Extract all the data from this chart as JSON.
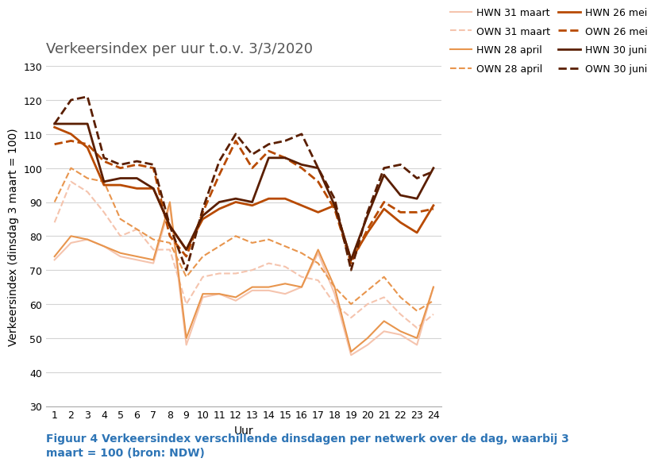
{
  "title": "Verkeersindex per uur t.o.v. 3/3/2020",
  "xlabel": "Uur",
  "ylabel": "Verkeersindex (dinsdag 3 maart = 100)",
  "caption": "Figuur 4 Verkeersindex verschillende dinsdagen per netwerk over de dag, waarbij 3\nmaart = 100 (bron: NDW)",
  "x": [
    1,
    2,
    3,
    4,
    5,
    6,
    7,
    8,
    9,
    10,
    11,
    12,
    13,
    14,
    15,
    16,
    17,
    18,
    19,
    20,
    21,
    22,
    23,
    24
  ],
  "ylim": [
    30,
    130
  ],
  "yticks": [
    30,
    40,
    50,
    60,
    70,
    80,
    90,
    100,
    110,
    120,
    130
  ],
  "series": {
    "HWN_31maart": {
      "label": "HWN 31 maart",
      "color": "#f5c4ae",
      "linestyle": "solid",
      "linewidth": 1.5,
      "values": [
        73,
        78,
        79,
        77,
        74,
        73,
        72,
        89,
        48,
        62,
        63,
        61,
        64,
        64,
        63,
        65,
        75,
        63,
        45,
        48,
        52,
        51,
        48,
        65
      ]
    },
    "OWN_31maart": {
      "label": "OWN 31 maart",
      "color": "#f5c4ae",
      "linestyle": "dashed",
      "linewidth": 1.5,
      "values": [
        84,
        96,
        93,
        87,
        80,
        82,
        76,
        76,
        60,
        68,
        69,
        69,
        70,
        72,
        71,
        68,
        67,
        60,
        56,
        60,
        62,
        57,
        53,
        57
      ]
    },
    "HWN_28april": {
      "label": "HWN 28 april",
      "color": "#e8954d",
      "linestyle": "solid",
      "linewidth": 1.5,
      "values": [
        74,
        80,
        79,
        77,
        75,
        74,
        73,
        90,
        50,
        63,
        63,
        62,
        65,
        65,
        66,
        65,
        76,
        65,
        46,
        50,
        55,
        52,
        50,
        65
      ]
    },
    "OWN_28april": {
      "label": "OWN 28 april",
      "color": "#e8954d",
      "linestyle": "dashed",
      "linewidth": 1.5,
      "values": [
        90,
        100,
        97,
        96,
        85,
        82,
        79,
        78,
        68,
        74,
        77,
        80,
        78,
        79,
        77,
        75,
        72,
        65,
        60,
        64,
        68,
        62,
        58,
        61
      ]
    },
    "HWN_26mei": {
      "label": "HWN 26 mei",
      "color": "#b84a00",
      "linestyle": "solid",
      "linewidth": 2.0,
      "values": [
        112,
        110,
        106,
        95,
        95,
        94,
        94,
        83,
        76,
        85,
        88,
        90,
        89,
        91,
        91,
        89,
        87,
        89,
        73,
        81,
        88,
        84,
        81,
        89
      ]
    },
    "OWN_26mei": {
      "label": "OWN 26 mei",
      "color": "#b84a00",
      "linestyle": "dashed",
      "linewidth": 2.0,
      "values": [
        107,
        108,
        107,
        102,
        100,
        101,
        100,
        80,
        74,
        87,
        98,
        108,
        100,
        105,
        103,
        100,
        96,
        88,
        72,
        82,
        90,
        87,
        87,
        88
      ]
    },
    "HWN_30juni": {
      "label": "HWN 30 juni",
      "color": "#5a1e00",
      "linestyle": "solid",
      "linewidth": 2.0,
      "values": [
        113,
        113,
        113,
        96,
        97,
        97,
        94,
        83,
        76,
        86,
        90,
        91,
        90,
        103,
        103,
        101,
        100,
        89,
        73,
        86,
        98,
        92,
        91,
        100
      ]
    },
    "OWN_30juni": {
      "label": "OWN 30 juni",
      "color": "#5a1e00",
      "linestyle": "dashed",
      "linewidth": 2.0,
      "values": [
        113,
        120,
        121,
        103,
        101,
        102,
        101,
        83,
        70,
        88,
        102,
        110,
        104,
        107,
        108,
        110,
        100,
        91,
        70,
        87,
        100,
        101,
        97,
        99
      ]
    }
  },
  "background_color": "#ffffff",
  "grid_color": "#d4d4d4",
  "title_fontsize": 13,
  "axis_label_fontsize": 10,
  "tick_fontsize": 9,
  "legend_fontsize": 9,
  "caption_color": "#2e75b6",
  "caption_fontsize": 10
}
